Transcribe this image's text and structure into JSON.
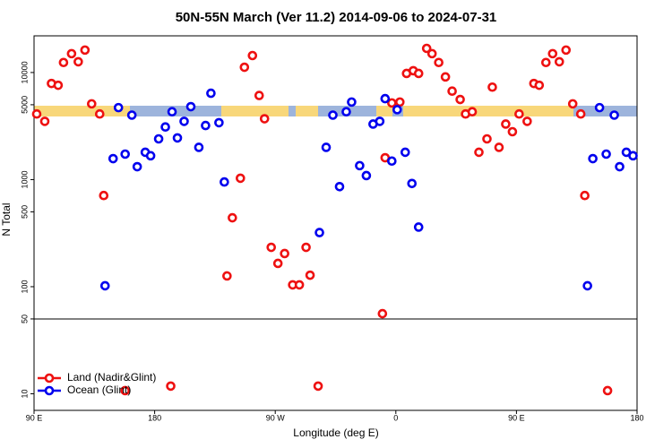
{
  "chart_data": {
    "type": "scatter",
    "title": "50N-55N March (Ver 11.2)   2014-09-06 to 2024-07-31",
    "x_label": "Longitude (deg E)",
    "y_label": "N Total",
    "xlim": [
      -270,
      180
    ],
    "xticks": [
      {
        "value": -270,
        "label": "90 E"
      },
      {
        "value": -180,
        "label": "180"
      },
      {
        "value": -90,
        "label": "90 W"
      },
      0,
      {
        "value": 90,
        "label": "90 E"
      },
      {
        "value": 180,
        "label": "180"
      }
    ],
    "ylim": [
      7,
      22000
    ],
    "yticks": [
      10,
      50,
      100,
      500,
      1000,
      5000,
      10000
    ],
    "log_y": true,
    "reference_line": 50,
    "legend": "bottom-left",
    "series": [
      {
        "name": "Land (Nadir&Glint)",
        "color": "#ee1111",
        "x": [
          -268,
          -262,
          -257,
          -252,
          -248,
          -242,
          -237,
          -232,
          -227,
          -221,
          -218,
          -202,
          -168,
          -126,
          -122,
          -116,
          -113,
          -107,
          -102,
          -98,
          -93,
          -88,
          -83,
          -77,
          -72,
          -67,
          -64,
          -58,
          -10,
          -8,
          -3,
          3,
          8,
          13,
          17,
          23,
          27,
          32,
          37,
          42,
          48,
          52,
          57,
          62,
          68,
          72,
          77,
          82,
          87,
          92,
          98,
          103,
          107,
          112,
          117,
          122,
          127,
          132,
          138,
          141,
          158
        ],
        "values": [
          4100,
          3500,
          7900,
          7600,
          12400,
          15000,
          12600,
          16200,
          5100,
          4100,
          710,
          10.7,
          11.8,
          126,
          440,
          1030,
          11200,
          14400,
          6100,
          3700,
          233,
          165,
          204,
          104,
          104,
          233,
          128,
          11.8,
          56,
          1600,
          5200,
          5300,
          9800,
          10400,
          9800,
          16800,
          15000,
          12400,
          9100,
          6700,
          5600,
          4100,
          4300,
          1800,
          2400,
          7300,
          2000,
          3300,
          2800,
          4100,
          3500,
          7900,
          7600,
          12400,
          15000,
          12600,
          16200,
          5100,
          4100,
          710,
          10.7
        ]
      },
      {
        "name": "Ocean (Glint)",
        "color": "#0000ee",
        "x": [
          -217,
          -211,
          -207,
          -202,
          -197,
          -193,
          -187,
          -183,
          -177,
          -172,
          -167,
          -163,
          -158,
          -153,
          -147,
          -142,
          -138,
          -132,
          -128,
          -57,
          -52,
          -47,
          -42,
          -37,
          -33,
          -27,
          -22,
          -17,
          -12,
          -8,
          -3,
          1,
          7,
          12,
          17,
          143,
          147,
          152,
          157,
          163,
          167,
          172,
          177
        ],
        "values": [
          102,
          1570,
          4700,
          1730,
          4000,
          1320,
          1800,
          1670,
          2400,
          3100,
          4300,
          2450,
          3500,
          4800,
          2000,
          3200,
          6400,
          3400,
          950,
          320,
          2000,
          4000,
          860,
          4300,
          5300,
          1350,
          1090,
          3300,
          3500,
          5700,
          1490,
          4500,
          1800,
          920,
          360,
          102,
          1570,
          4700,
          1730,
          4000,
          1320,
          1800,
          1670
        ]
      }
    ]
  }
}
